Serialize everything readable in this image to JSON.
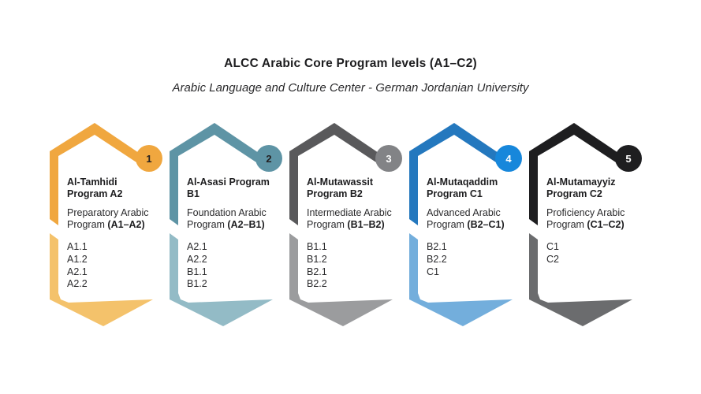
{
  "header": {
    "title": "ALCC Arabic Core Program levels (A1–C2)",
    "subtitle": "Arabic Language and Culture Center - German Jordanian University"
  },
  "cards": [
    {
      "number": "1",
      "title": "Al-Tamhidi Program A2",
      "description": "Preparatory Arabic Program",
      "range": "(A1–A2)",
      "levels": [
        "A1.1",
        "A1.2",
        "A2.1",
        "A2.2"
      ],
      "colors": {
        "primary": "#F0A73F",
        "secondary": "#F4C26B",
        "badge": "#F0A73F",
        "badge_text": "#231F20"
      }
    },
    {
      "number": "2",
      "title": "Al-Asasi Program B1",
      "description": "Foundation Arabic Program",
      "range": "(A2–B1)",
      "levels": [
        "A2.1",
        "A2.2",
        "B1.1",
        "B1.2"
      ],
      "colors": {
        "primary": "#5E94A5",
        "secondary": "#93BBC6",
        "badge": "#5E94A5",
        "badge_text": "#231F20"
      }
    },
    {
      "number": "3",
      "title": "Al-Mutawassit Program B2",
      "description": "Intermediate Arabic Program",
      "range": "(B1–B2)",
      "levels": [
        "B1.1",
        "B1.2",
        "B2.1",
        "B2.2"
      ],
      "colors": {
        "primary": "#59595B",
        "secondary": "#9B9C9E",
        "badge": "#828386",
        "badge_text": "#FFFFFF"
      }
    },
    {
      "number": "4",
      "title": "Al-Mutaqaddim Program C1",
      "description": "Advanced Arabic Program",
      "range": "(B2–C1)",
      "levels": [
        "B2.1",
        "B2.2",
        "C1"
      ],
      "colors": {
        "primary": "#2478BE",
        "secondary": "#73AEDC",
        "badge": "#1787DB",
        "badge_text": "#FFFFFF"
      }
    },
    {
      "number": "5",
      "title": "Al-Mutamayyiz Program C2",
      "description": "Proficiency Arabic Program",
      "range": "(C1–C2)",
      "levels": [
        "C1",
        "C2"
      ],
      "colors": {
        "primary": "#1E1E20",
        "secondary": "#6B6C6E",
        "badge": "#1E1E20",
        "badge_text": "#FFFFFF"
      }
    }
  ]
}
